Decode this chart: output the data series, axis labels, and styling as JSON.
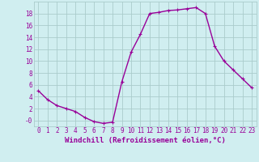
{
  "x": [
    0,
    1,
    2,
    3,
    4,
    5,
    6,
    7,
    8,
    9,
    10,
    11,
    12,
    13,
    14,
    15,
    16,
    17,
    18,
    19,
    20,
    21,
    22,
    23
  ],
  "y": [
    5,
    3.5,
    2.5,
    2,
    1.5,
    0.5,
    -0.2,
    -0.5,
    -0.3,
    6.5,
    11.5,
    14.5,
    18,
    18.2,
    18.5,
    18.6,
    18.8,
    19,
    18,
    12.5,
    10,
    8.5,
    7,
    5.5
  ],
  "line_color": "#990099",
  "marker": "+",
  "marker_size": 3.5,
  "bg_color": "#d0eef0",
  "grid_color": "#aacccc",
  "xlabel": "Windchill (Refroidissement éolien,°C)",
  "xlabel_fontsize": 6.5,
  "ylim": [
    -1,
    20
  ],
  "xlim": [
    -0.5,
    23.5
  ],
  "yticks": [
    0,
    2,
    4,
    6,
    8,
    10,
    12,
    14,
    16,
    18
  ],
  "ytick_labels": [
    "-0",
    "2",
    "4",
    "6",
    "8",
    "10",
    "12",
    "14",
    "16",
    "18"
  ],
  "xticks": [
    0,
    1,
    2,
    3,
    4,
    5,
    6,
    7,
    8,
    9,
    10,
    11,
    12,
    13,
    14,
    15,
    16,
    17,
    18,
    19,
    20,
    21,
    22,
    23
  ],
  "tick_fontsize": 5.5,
  "line_width": 1.0
}
